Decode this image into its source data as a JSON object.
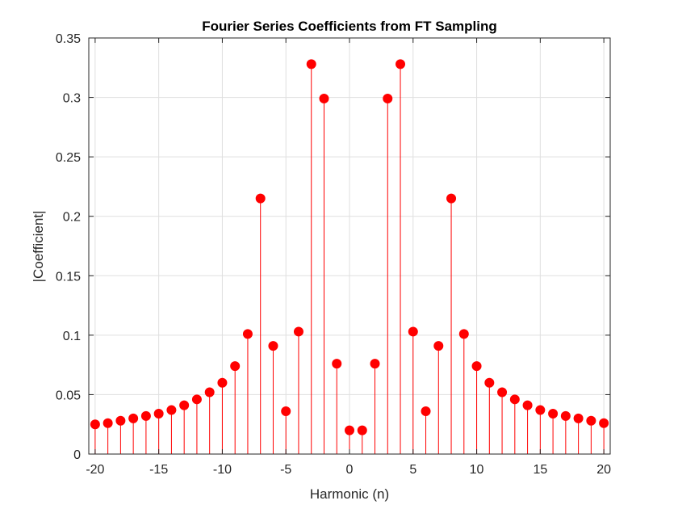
{
  "chart_data": {
    "type": "stem",
    "title": "Fourier Series Coefficients from FT Sampling",
    "xlabel": "Harmonic (n)",
    "ylabel": "|Coefficient|",
    "xlim": [
      -20.5,
      20.5
    ],
    "ylim": [
      0,
      0.35
    ],
    "xticks": [
      -20,
      -15,
      -10,
      -5,
      0,
      5,
      10,
      15,
      20
    ],
    "xtick_labels": [
      "-20",
      "-15",
      "-10",
      "-5",
      "0",
      "5",
      "10",
      "15",
      "20"
    ],
    "yticks": [
      0,
      0.05,
      0.1,
      0.15,
      0.2,
      0.25,
      0.3,
      0.35
    ],
    "ytick_labels": [
      "0",
      "0.05",
      "0.1",
      "0.15",
      "0.2",
      "0.25",
      "0.3",
      "0.35"
    ],
    "grid": true,
    "series": [
      {
        "color": "#ff0000",
        "x": [
          -20,
          -19,
          -18,
          -17,
          -16,
          -15,
          -14,
          -13,
          -12,
          -11,
          -10,
          -9,
          -8,
          -7,
          -6,
          -5,
          -4,
          -3,
          -2,
          -1,
          0,
          1,
          2,
          3,
          4,
          5,
          6,
          7,
          8,
          9,
          10,
          11,
          12,
          13,
          14,
          15,
          16,
          17,
          18,
          19,
          20
        ],
        "values": [
          0.025,
          0.026,
          0.028,
          0.03,
          0.032,
          0.034,
          0.037,
          0.041,
          0.046,
          0.052,
          0.06,
          0.074,
          0.101,
          0.215,
          0.091,
          0.036,
          0.103,
          0.328,
          0.299,
          0.076,
          0.02,
          0.02,
          0.076,
          0.299,
          0.328,
          0.103,
          0.036,
          0.091,
          0.215,
          0.101,
          0.074,
          0.06,
          0.052,
          0.046,
          0.041,
          0.037,
          0.034,
          0.032,
          0.03,
          0.028,
          0.026
        ]
      }
    ]
  }
}
